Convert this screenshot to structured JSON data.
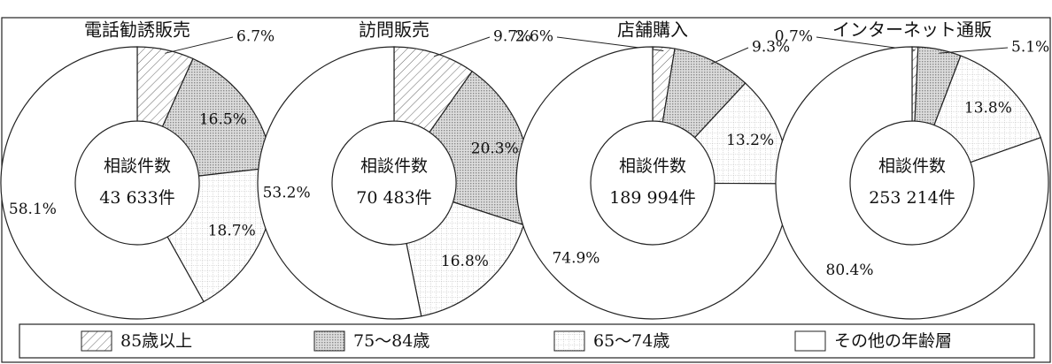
{
  "chart_data": [
    {
      "type": "pie",
      "title": "電話勧誘販売",
      "categories": [
        "85歳以上",
        "75～84歳",
        "65～74歳",
        "その他の年齢層"
      ],
      "values": [
        6.7,
        16.5,
        18.7,
        58.1
      ],
      "value_labels": [
        "6.7%",
        "16.5%",
        "18.7%",
        "58.1%"
      ],
      "patterns": [
        "hatch",
        "dots",
        "grid",
        "none"
      ],
      "center_label": "相談件数",
      "total": 43633,
      "total_label": "43 633件"
    },
    {
      "type": "pie",
      "title": "訪問販売",
      "categories": [
        "85歳以上",
        "75～84歳",
        "65～74歳",
        "その他の年齢層"
      ],
      "values": [
        9.7,
        20.3,
        16.8,
        53.2
      ],
      "value_labels": [
        "9.7%",
        "20.3%",
        "16.8%",
        "53.2%"
      ],
      "patterns": [
        "hatch",
        "dots",
        "grid",
        "none"
      ],
      "center_label": "相談件数",
      "total": 70483,
      "total_label": "70 483件"
    },
    {
      "type": "pie",
      "title": "店舗購入",
      "categories": [
        "85歳以上",
        "75～84歳",
        "65～74歳",
        "その他の年齢層"
      ],
      "values": [
        2.6,
        9.3,
        13.2,
        74.9
      ],
      "value_labels": [
        "2.6%",
        "9.3%",
        "13.2%",
        "74.9%"
      ],
      "patterns": [
        "hatch",
        "dots",
        "grid",
        "none"
      ],
      "center_label": "相談件数",
      "total": 189994,
      "total_label": "189 994件"
    },
    {
      "type": "pie",
      "title": "インターネット通販",
      "categories": [
        "85歳以上",
        "75～84歳",
        "65～74歳",
        "その他の年齢層"
      ],
      "values": [
        0.7,
        5.1,
        13.8,
        80.4
      ],
      "value_labels": [
        "0.7%",
        "5.1%",
        "13.8%",
        "80.4%"
      ],
      "patterns": [
        "hatch",
        "dots",
        "grid",
        "none"
      ],
      "center_label": "相談件数",
      "total": 253214,
      "total_label": "253 214件"
    }
  ]
}
